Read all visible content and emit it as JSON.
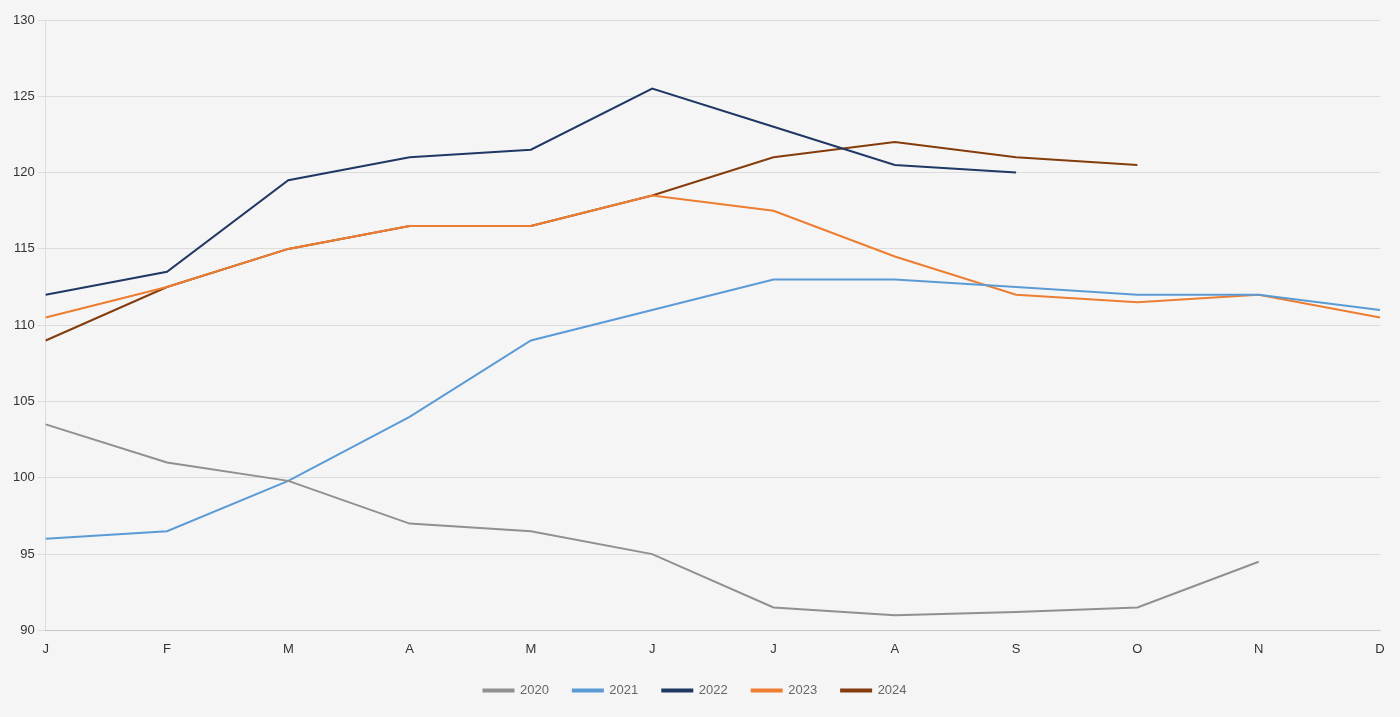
{
  "chart_data": {
    "type": "line",
    "categories": [
      "J",
      "F",
      "M",
      "A",
      "M",
      "J",
      "J",
      "A",
      "S",
      "O",
      "N",
      "D"
    ],
    "series": [
      {
        "name": "2020",
        "color": "#909090",
        "values": [
          103.5,
          101.0,
          99.8,
          97.0,
          96.5,
          95.0,
          91.5,
          91.0,
          91.2,
          91.5,
          94.5,
          null
        ]
      },
      {
        "name": "2021",
        "color": "#5B9BD5",
        "values": [
          96.0,
          96.5,
          99.8,
          104.0,
          109.0,
          111.0,
          113.0,
          113.0,
          112.5,
          112.0,
          112.0,
          111.0
        ]
      },
      {
        "name": "2022",
        "color": "#1F3864",
        "values": [
          112.0,
          113.5,
          119.5,
          121.0,
          121.5,
          125.5,
          123.0,
          120.5,
          120.0,
          null,
          null,
          null
        ]
      },
      {
        "name": "2023",
        "color": "#ED7D31",
        "values": [
          110.5,
          112.5,
          115.0,
          116.5,
          116.5,
          118.5,
          117.5,
          114.5,
          112.0,
          111.5,
          112.0,
          110.5
        ]
      },
      {
        "name": "2024",
        "color": "#843C0C",
        "values": [
          109.0,
          112.5,
          115.0,
          116.5,
          116.5,
          118.5,
          121.0,
          122.0,
          121.0,
          120.5,
          null,
          null
        ]
      }
    ],
    "ylim": [
      90,
      130
    ],
    "yticks": [
      90,
      95,
      100,
      105,
      110,
      115,
      120,
      125,
      130
    ],
    "grid": true,
    "legend": "bottom",
    "marker": "none"
  }
}
